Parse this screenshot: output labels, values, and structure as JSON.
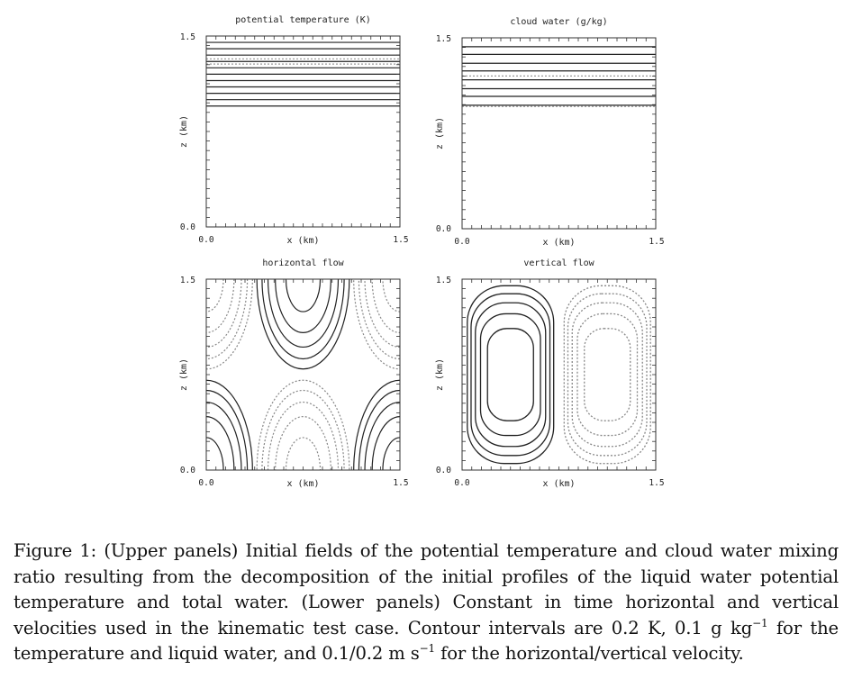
{
  "chart_data": [
    {
      "type": "contour",
      "title": "potential temperature (K)",
      "xlabel": "x (km)",
      "ylabel": "z (km)",
      "xlim": [
        0.0,
        1.5
      ],
      "ylim": [
        0.0,
        1.5
      ],
      "xticks": [
        "0.0",
        "1.5"
      ],
      "yticks": [
        "0.0",
        "1.5"
      ],
      "solid_levels_z": [
        0.95,
        1.0,
        1.05,
        1.1,
        1.15,
        1.2,
        1.25,
        1.3,
        1.35,
        1.4,
        1.45
      ],
      "dotted_levels_z": [
        1.28,
        1.32
      ]
    },
    {
      "type": "contour",
      "title": "cloud water (g/kg)",
      "xlabel": "x (km)",
      "ylabel": "z (km)",
      "xlim": [
        0.0,
        1.5
      ],
      "ylim": [
        0.0,
        1.5
      ],
      "xticks": [
        "0.0",
        "1.5"
      ],
      "yticks": [
        "0.0",
        "1.5"
      ],
      "solid_levels_z": [
        0.97,
        1.04,
        1.1,
        1.17,
        1.24,
        1.3,
        1.37,
        1.43
      ],
      "dotted_levels_z": [
        0.96,
        1.2
      ]
    },
    {
      "type": "contour",
      "title": "horizontal flow",
      "xlabel": "x (km)",
      "ylabel": "z (km)",
      "xlim": [
        0.0,
        1.5
      ],
      "ylim": [
        0.0,
        1.5
      ],
      "xticks": [
        "0.0",
        "1.5"
      ],
      "yticks": [
        "0.0",
        "1.5"
      ],
      "contour_levels": [
        0.1,
        0.3,
        0.5,
        0.7,
        0.9
      ]
    },
    {
      "type": "contour",
      "title": "vertical flow",
      "xlabel": "x (km)",
      "ylabel": "z (km)",
      "xlim": [
        0.0,
        1.5
      ],
      "ylim": [
        0.0,
        1.5
      ],
      "xticks": [
        "0.0",
        "1.5"
      ],
      "yticks": [
        "0.0",
        "1.5"
      ],
      "contour_levels": [
        0.1,
        0.3,
        0.5,
        0.7,
        0.9
      ]
    }
  ],
  "caption": {
    "text_1": "Figure 1: (Upper panels) Initial fields of the potential temperature and cloud water mixing ratio resulting from the decomposition of the initial profiles of the liquid water potential temperature and total water. (Lower panels) Constant in time horizontal and vertical velocities used in the kinematic test case. Contour intervals are 0.2 K, 0.1 g kg",
    "sup_1": "−1",
    "text_2": " for the temperature and liquid water, and 0.1/0.2 m s",
    "sup_2": "−1",
    "text_3": " for the horizontal/vertical velocity."
  }
}
